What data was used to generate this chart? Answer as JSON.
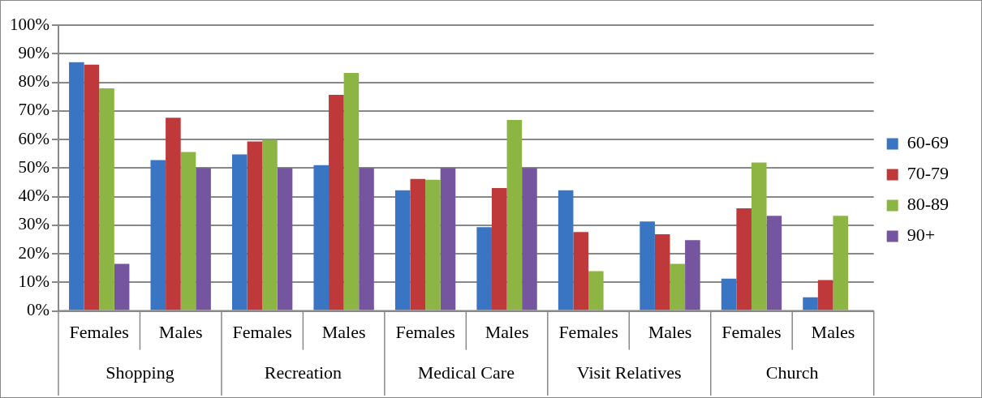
{
  "chart_data": {
    "type": "bar",
    "categories": [
      "Females",
      "Males",
      "Females",
      "Males",
      "Females",
      "Males",
      "Females",
      "Males",
      "Females",
      "Males"
    ],
    "annotations": [
      "Shopping",
      "Recreation",
      "Medical Care",
      "Visit Relatives",
      "Church"
    ],
    "series": [
      {
        "name": "60-69",
        "color": "#3a75c4",
        "values": [
          87.0,
          52.8,
          54.8,
          51.0,
          42.2,
          29.3,
          42.2,
          31.3,
          11.3,
          4.8
        ]
      },
      {
        "name": "70-79",
        "color": "#c0393a",
        "values": [
          86.2,
          67.6,
          59.3,
          75.6,
          46.2,
          43.0,
          27.6,
          26.8,
          35.9,
          10.8
        ]
      },
      {
        "name": "80-89",
        "color": "#8db543",
        "values": [
          77.9,
          55.6,
          59.9,
          83.3,
          45.9,
          66.8,
          13.9,
          16.5,
          51.9,
          33.3
        ]
      },
      {
        "name": "90+",
        "color": "#7655a0",
        "values": [
          16.5,
          50,
          50,
          50,
          50,
          50,
          null,
          24.8,
          33.3,
          null
        ]
      }
    ],
    "ylim": [
      0,
      100
    ],
    "yticks": [
      {
        "value": 0,
        "label": "0%"
      },
      {
        "value": 10,
        "label": "10%"
      },
      {
        "value": 20,
        "label": "20%"
      },
      {
        "value": 30,
        "label": "30%"
      },
      {
        "value": 40,
        "label": "40%"
      },
      {
        "value": 50,
        "label": "50%"
      },
      {
        "value": 60,
        "label": "60%"
      },
      {
        "value": 70,
        "label": "70%"
      },
      {
        "value": 80,
        "label": "80%"
      },
      {
        "value": 90,
        "label": "90%"
      },
      {
        "value": 100,
        "label": "100%"
      }
    ],
    "grid": "y",
    "legend": "right"
  }
}
